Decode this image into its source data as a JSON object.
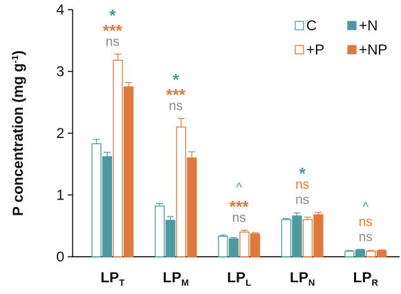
{
  "chart_data": {
    "type": "bar",
    "ylabel": "P concentration (mg g",
    "ylabel_sup": "-1",
    "ylabel_close": ")",
    "ylim": [
      0,
      4
    ],
    "yticks": [
      "0",
      "1",
      "2",
      "3",
      "4"
    ],
    "categories": [
      {
        "main": "LP",
        "sub": "T"
      },
      {
        "main": "LP",
        "sub": "M"
      },
      {
        "main": "LP",
        "sub": "L"
      },
      {
        "main": "LP",
        "sub": "N"
      },
      {
        "main": "LP",
        "sub": "R"
      }
    ],
    "series": [
      {
        "name": "C",
        "color": "#4a9aa0",
        "filled": false,
        "values": [
          1.83,
          0.82,
          0.33,
          0.6,
          0.09
        ],
        "errors": [
          0.07,
          0.04,
          0.02,
          0.02,
          0.01
        ]
      },
      {
        "name": "+N",
        "color": "#4a9aa0",
        "filled": true,
        "values": [
          1.62,
          0.59,
          0.29,
          0.66,
          0.11
        ],
        "errors": [
          0.07,
          0.06,
          0.02,
          0.05,
          0.01
        ]
      },
      {
        "name": "+P",
        "color": "#e07a3c",
        "filled": false,
        "values": [
          3.18,
          2.1,
          0.4,
          0.6,
          0.09
        ],
        "errors": [
          0.1,
          0.14,
          0.03,
          0.04,
          0.01
        ]
      },
      {
        "name": "+NP",
        "color": "#e07a3c",
        "filled": true,
        "values": [
          2.75,
          1.6,
          0.37,
          0.68,
          0.1
        ],
        "errors": [
          0.07,
          0.1,
          0.02,
          0.04,
          0.01
        ]
      }
    ],
    "legend": {
      "placement": "top-right",
      "order": [
        "C",
        "+N",
        "+P",
        "+NP"
      ]
    },
    "annotations": [
      {
        "category": 0,
        "labels": [
          {
            "text": "*",
            "color": "#4a9aa0"
          },
          {
            "text": "***",
            "color": "#e07a3c"
          },
          {
            "text": "ns",
            "color": "#8a8a8a"
          }
        ]
      },
      {
        "category": 1,
        "labels": [
          {
            "text": "*",
            "color": "#4a9aa0"
          },
          {
            "text": "***",
            "color": "#e07a3c"
          },
          {
            "text": "ns",
            "color": "#8a8a8a"
          }
        ]
      },
      {
        "category": 2,
        "labels": [
          {
            "text": "^",
            "color": "#4a9aa0"
          },
          {
            "text": "***",
            "color": "#e07a3c"
          },
          {
            "text": "ns",
            "color": "#8a8a8a"
          }
        ]
      },
      {
        "category": 3,
        "labels": [
          {
            "text": "*",
            "color": "#4a9aa0"
          },
          {
            "text": "ns",
            "color": "#e07a3c"
          },
          {
            "text": "ns",
            "color": "#8a8a8a"
          }
        ]
      },
      {
        "category": 4,
        "labels": [
          {
            "text": "^",
            "color": "#4a9aa0"
          },
          {
            "text": "ns",
            "color": "#e07a3c"
          },
          {
            "text": "ns",
            "color": "#8a8a8a"
          }
        ]
      }
    ],
    "grid": false
  }
}
